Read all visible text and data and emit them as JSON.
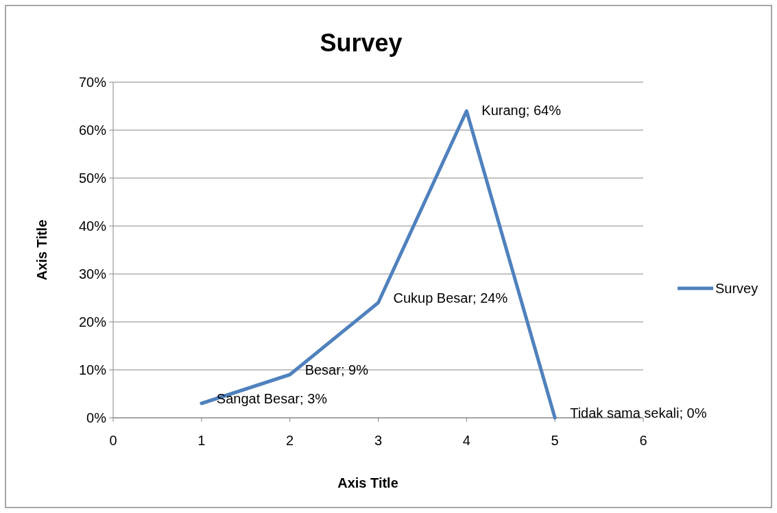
{
  "chart_data": {
    "type": "line",
    "title": "Survey",
    "xlabel": "Axis Title",
    "ylabel": "Axis Title",
    "x": [
      1,
      2,
      3,
      4,
      5
    ],
    "series": [
      {
        "name": "Survey",
        "color": "#4f81bd",
        "values": [
          3,
          9,
          24,
          64,
          0
        ],
        "value_labels": [
          "Sangat Besar; 3%",
          "Besar; 9%",
          "Cukup Besar; 24%",
          "Kurang; 64%",
          "Tidak sama sekali; 0%"
        ]
      }
    ],
    "xlim": [
      0,
      6
    ],
    "xticks": [
      0,
      1,
      2,
      3,
      4,
      5,
      6
    ],
    "ylim": [
      0,
      70
    ],
    "yticks": [
      {
        "value": 0,
        "label": "0%"
      },
      {
        "value": 10,
        "label": "10%"
      },
      {
        "value": 20,
        "label": "20%"
      },
      {
        "value": 30,
        "label": "30%"
      },
      {
        "value": 40,
        "label": "40%"
      },
      {
        "value": 50,
        "label": "50%"
      },
      {
        "value": 60,
        "label": "60%"
      },
      {
        "value": 70,
        "label": "70%"
      }
    ],
    "grid": "y",
    "legend": "right",
    "marker": "none",
    "line_style": "solid"
  }
}
